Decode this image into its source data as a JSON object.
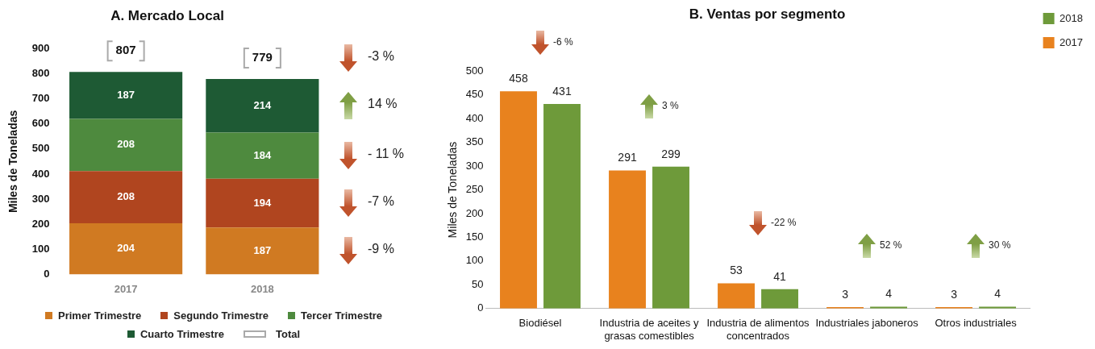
{
  "chart_data": [
    {
      "type": "bar",
      "title": "A. Mercado Local",
      "ylabel": "Miles de Toneladas",
      "categories": [
        "2017",
        "2018"
      ],
      "stacked": true,
      "data_labels": true,
      "legend": "bottom",
      "ylim": [
        0,
        900
      ],
      "yticks": [
        0,
        100,
        200,
        300,
        400,
        500,
        600,
        700,
        800,
        900
      ],
      "totals": [
        "807",
        "779"
      ],
      "series": [
        {
          "name": "Primer Trimestre",
          "color": "#d07a22",
          "values": [
            204,
            187
          ]
        },
        {
          "name": "Segundo Trimestre",
          "color": "#b0451f",
          "values": [
            208,
            194
          ]
        },
        {
          "name": "Tercer Trimestre",
          "color": "#4e8a3e",
          "values": [
            208,
            184
          ]
        },
        {
          "name": "Cuarto Trimestre",
          "color": "#1e5a34",
          "values": [
            187,
            214
          ]
        }
      ],
      "annotations": [
        "-3 %",
        "14 %",
        "- 11 %",
        "-7 %",
        "-9 %",
        "Total"
      ]
    },
    {
      "type": "bar",
      "title": "B. Ventas por segmento",
      "ylabel": "Miles de Toneladas",
      "categories": [
        "Biodiésel",
        "Industria de aceites y grasas comestibles",
        "Industria de alimentos concentrados",
        "Industriales jaboneros",
        "Otros industriales"
      ],
      "data_labels": true,
      "legend": "top right",
      "ylim": [
        0,
        500
      ],
      "yticks": [
        0,
        50,
        100,
        150,
        200,
        250,
        300,
        350,
        400,
        450,
        500
      ],
      "series": [
        {
          "name": "2017",
          "color": "#e8821e",
          "values": [
            458,
            291,
            53,
            3,
            3
          ]
        },
        {
          "name": "2018",
          "color": "#6e9a3a",
          "values": [
            431,
            299,
            41,
            4,
            4
          ]
        }
      ],
      "annotations": [
        "-6 %",
        "3 %",
        "-22 %",
        "52 %",
        "30 %"
      ]
    }
  ]
}
